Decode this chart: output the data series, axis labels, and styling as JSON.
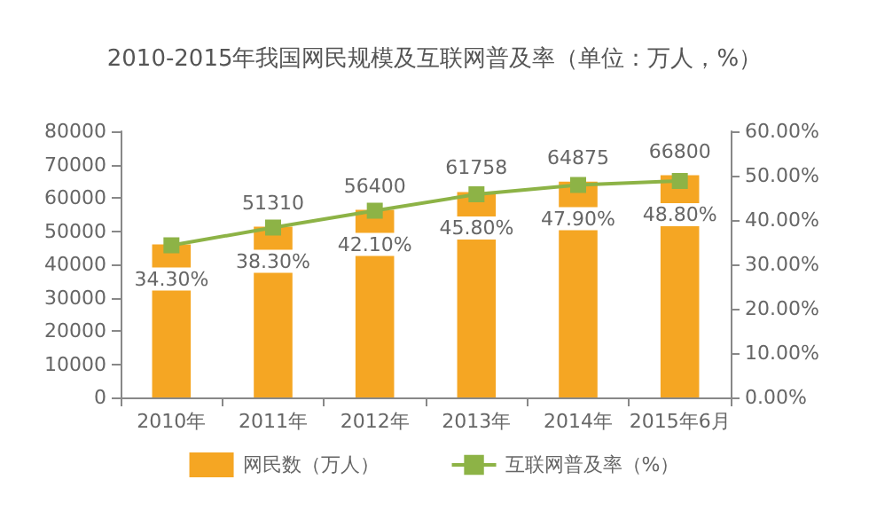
{
  "chart_data": {
    "type": "bar",
    "title": "2010-2015年我国网民规模及互联网普及率（单位：万人，%）",
    "categories": [
      "2010年",
      "2011年",
      "2012年",
      "2013年",
      "2014年",
      "2015年6月"
    ],
    "series": [
      {
        "name": "网民数（万人）",
        "color": "#f5a623",
        "values": [
          46000,
          51310,
          56400,
          61758,
          64875,
          66800
        ],
        "value_labels": [
          null,
          "51310",
          "56400",
          "61758",
          "64875",
          "66800"
        ]
      },
      {
        "name": "互联网普及率（%）",
        "type": "line",
        "axis": "y2",
        "color": "#8db346",
        "marker": "square",
        "values": [
          34.3,
          38.3,
          42.1,
          45.8,
          47.9,
          48.8
        ],
        "value_labels": [
          "34.30%",
          "38.30%",
          "42.10%",
          "45.80%",
          "47.90%",
          "48.80%"
        ]
      }
    ],
    "ylim": [
      0,
      80000
    ],
    "yticks": [
      0,
      10000,
      20000,
      30000,
      40000,
      50000,
      60000,
      70000,
      80000
    ],
    "y2lim": [
      0,
      60
    ],
    "y2ticks": [
      {
        "value": 0,
        "label": "0.00%"
      },
      {
        "value": 10,
        "label": "10.00%"
      },
      {
        "value": 20,
        "label": "20.00%"
      },
      {
        "value": 30,
        "label": "30.00%"
      },
      {
        "value": 40,
        "label": "40.00%"
      },
      {
        "value": 50,
        "label": "50.00%"
      },
      {
        "value": 60,
        "label": "60.00%"
      }
    ],
    "grid": false,
    "legend": "bottom"
  }
}
